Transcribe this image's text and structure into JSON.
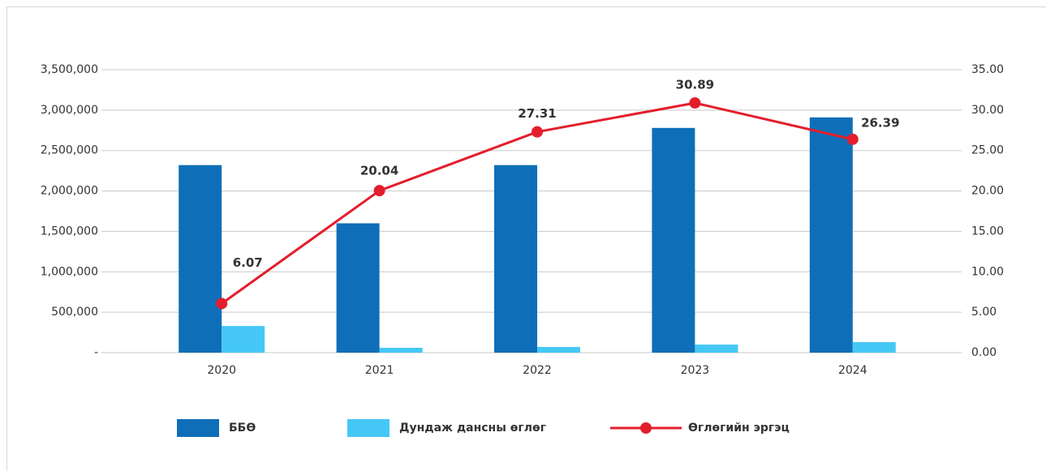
{
  "chart_data": {
    "type": "bar_line",
    "categories": [
      "2020",
      "2021",
      "2022",
      "2023",
      "2024"
    ],
    "series": [
      {
        "name": "ББӨ",
        "type": "bar",
        "color": "#0e6fb8",
        "values": [
          2320000,
          1600000,
          2320000,
          2780000,
          2910000
        ]
      },
      {
        "name": "Дундаж дансны өглөг",
        "type": "bar",
        "color": "#45c8f5",
        "values": [
          330000,
          60000,
          70000,
          100000,
          130000
        ]
      },
      {
        "name": "Өглөгийн эргэц",
        "type": "line",
        "color": "#e31e2c",
        "axis": "y2",
        "values": [
          6.07,
          20.04,
          27.31,
          30.89,
          26.39
        ]
      }
    ],
    "ylim": [
      0,
      3500000
    ],
    "yticks": [
      {
        "value": 0,
        "label": "-"
      },
      {
        "value": 500000,
        "label": "500,000"
      },
      {
        "value": 1000000,
        "label": "1,000,000"
      },
      {
        "value": 1500000,
        "label": "1,500,000"
      },
      {
        "value": 2000000,
        "label": "2,000,000"
      },
      {
        "value": 2500000,
        "label": "2,500,000"
      },
      {
        "value": 3000000,
        "label": "3,000,000"
      },
      {
        "value": 3500000,
        "label": "3,500,000"
      }
    ],
    "y2lim": [
      0,
      35
    ],
    "y2ticks": [
      {
        "value": 0,
        "label": "0.00"
      },
      {
        "value": 5,
        "label": "5.00"
      },
      {
        "value": 10,
        "label": "10.00"
      },
      {
        "value": 15,
        "label": "15.00"
      },
      {
        "value": 20,
        "label": "20.00"
      },
      {
        "value": 25,
        "label": "25.00"
      },
      {
        "value": 30,
        "label": "30.00"
      },
      {
        "value": 35,
        "label": "35.00"
      }
    ],
    "grid": true,
    "legend": "bottom"
  }
}
